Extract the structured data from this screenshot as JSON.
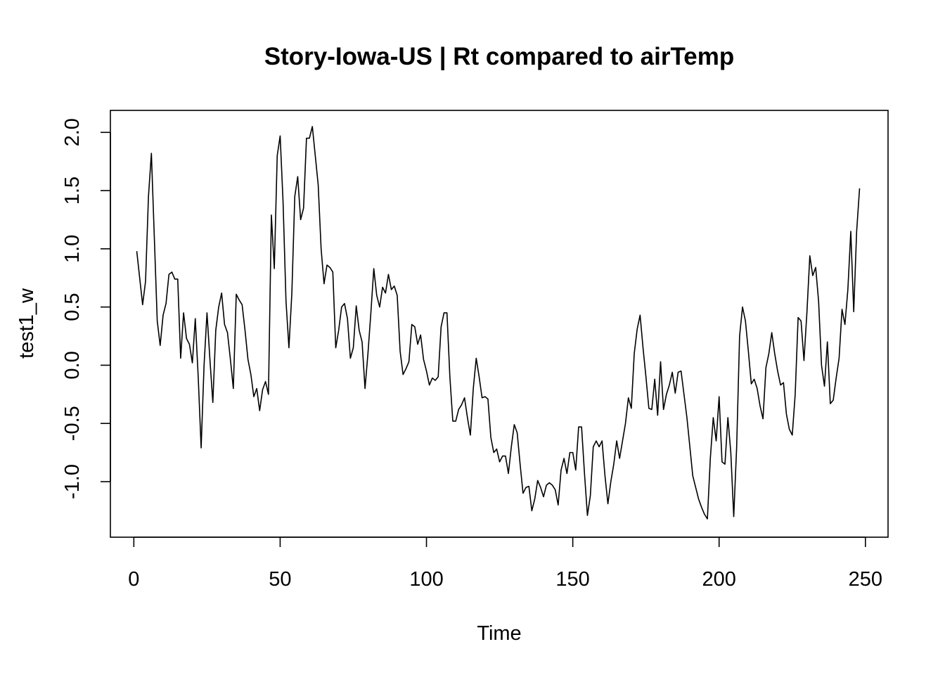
{
  "chart_data": {
    "type": "line",
    "title": "Story-Iowa-US | Rt compared to airTemp",
    "xlabel": "Time",
    "ylabel": "test1_w",
    "xlim": [
      1,
      248
    ],
    "ylim": [
      -1.32,
      2.05
    ],
    "x_ticks": [
      0,
      50,
      100,
      150,
      200,
      250
    ],
    "x_tick_labels": [
      "0",
      "50",
      "100",
      "150",
      "200",
      "250"
    ],
    "y_ticks": [
      -1.0,
      -0.5,
      0.0,
      0.5,
      1.0,
      1.5,
      2.0
    ],
    "y_tick_labels": [
      "-1.0",
      "-0.5",
      "0.0",
      "0.5",
      "1.0",
      "1.5",
      "2.0"
    ],
    "grid": false,
    "legend": "none",
    "series": [
      {
        "color": "#000000",
        "x_start": 1,
        "values": [
          0.98,
          0.75,
          0.52,
          0.72,
          1.45,
          1.82,
          1.1,
          0.38,
          0.17,
          0.43,
          0.53,
          0.78,
          0.8,
          0.74,
          0.74,
          0.06,
          0.45,
          0.23,
          0.18,
          0.02,
          0.4,
          -0.1,
          -0.71,
          0.0,
          0.45,
          0.05,
          -0.32,
          0.3,
          0.5,
          0.62,
          0.35,
          0.28,
          0.05,
          -0.2,
          0.61,
          0.56,
          0.52,
          0.3,
          0.05,
          -0.08,
          -0.27,
          -0.2,
          -0.39,
          -0.21,
          -0.14,
          -0.25,
          1.29,
          0.83,
          1.8,
          1.97,
          1.4,
          0.55,
          0.15,
          0.62,
          1.45,
          1.62,
          1.25,
          1.35,
          1.95,
          1.95,
          2.05,
          1.8,
          1.55,
          1.0,
          0.7,
          0.86,
          0.84,
          0.8,
          0.15,
          0.3,
          0.5,
          0.53,
          0.4,
          0.06,
          0.15,
          0.51,
          0.3,
          0.2,
          -0.2,
          0.1,
          0.45,
          0.83,
          0.6,
          0.5,
          0.67,
          0.62,
          0.78,
          0.65,
          0.68,
          0.6,
          0.12,
          -0.08,
          -0.03,
          0.03,
          0.35,
          0.33,
          0.18,
          0.26,
          0.05,
          -0.05,
          -0.17,
          -0.11,
          -0.13,
          -0.1,
          0.33,
          0.45,
          0.45,
          -0.1,
          -0.48,
          -0.48,
          -0.38,
          -0.34,
          -0.28,
          -0.45,
          -0.6,
          -0.2,
          0.06,
          -0.1,
          -0.28,
          -0.27,
          -0.29,
          -0.62,
          -0.75,
          -0.72,
          -0.83,
          -0.78,
          -0.78,
          -0.93,
          -0.7,
          -0.51,
          -0.58,
          -0.85,
          -1.1,
          -1.05,
          -1.04,
          -1.25,
          -1.15,
          -0.99,
          -1.05,
          -1.13,
          -1.03,
          -1.01,
          -1.03,
          -1.07,
          -1.2,
          -0.9,
          -0.8,
          -0.93,
          -0.75,
          -0.75,
          -0.9,
          -0.53,
          -0.53,
          -0.93,
          -1.29,
          -1.12,
          -0.7,
          -0.65,
          -0.7,
          -0.65,
          -0.95,
          -1.19,
          -1.0,
          -0.85,
          -0.65,
          -0.8,
          -0.65,
          -0.5,
          -0.28,
          -0.37,
          0.1,
          0.31,
          0.43,
          0.15,
          -0.1,
          -0.37,
          -0.38,
          -0.12,
          -0.43,
          0.03,
          -0.38,
          -0.25,
          -0.17,
          -0.06,
          -0.24,
          -0.06,
          -0.05,
          -0.25,
          -0.45,
          -0.7,
          -0.95,
          -1.05,
          -1.15,
          -1.22,
          -1.28,
          -1.32,
          -0.8,
          -0.45,
          -0.65,
          -0.27,
          -0.83,
          -0.85,
          -0.45,
          -0.75,
          -1.3,
          -0.7,
          0.25,
          0.5,
          0.38,
          0.12,
          -0.16,
          -0.12,
          -0.2,
          -0.35,
          -0.46,
          -0.02,
          0.1,
          0.28,
          0.1,
          -0.05,
          -0.17,
          -0.15,
          -0.42,
          -0.55,
          -0.6,
          -0.25,
          0.41,
          0.38,
          0.04,
          0.45,
          0.94,
          0.77,
          0.84,
          0.55,
          0.0,
          -0.18,
          0.2,
          -0.33,
          -0.3,
          -0.11,
          0.06,
          0.48,
          0.35,
          0.65,
          1.15,
          0.46,
          1.15,
          1.52
        ]
      }
    ]
  }
}
